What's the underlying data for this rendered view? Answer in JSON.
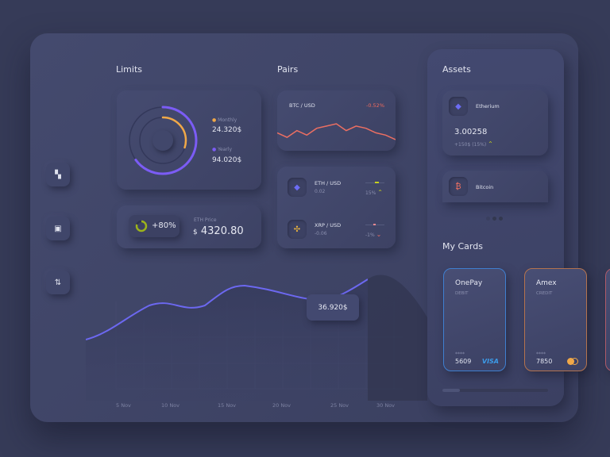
{
  "sidebar": {
    "items": [
      {
        "icon": "dashboard-icon",
        "glyph": "▚"
      },
      {
        "icon": "wallet-icon",
        "glyph": "▣"
      },
      {
        "icon": "exchange-icon",
        "glyph": "⇅"
      }
    ]
  },
  "limits": {
    "title": "Limits",
    "monthly_label": "Monthly",
    "monthly_value": "24.320$",
    "yearly_label": "Yearly",
    "yearly_value": "94.020$",
    "monthly_fraction": 0.3,
    "yearly_fraction": 0.65,
    "colors": {
      "monthly": "#f0a848",
      "yearly": "#7b5cf5"
    }
  },
  "eth_price": {
    "percent": "+80%",
    "label": "ETH Price",
    "currency": "$",
    "value": "4320.80",
    "fraction": 0.8,
    "color": "#9cb31c"
  },
  "pairs": {
    "title": "Pairs",
    "btc": {
      "name": "BTC / USD",
      "change": "-0.52%",
      "trend": [
        5,
        3,
        6,
        4,
        7,
        8,
        9,
        6,
        8,
        7,
        5,
        4,
        2
      ]
    },
    "items": [
      {
        "name": "ETH / USD",
        "value": "0.02",
        "change": "15%",
        "dir": "up",
        "icon": "ethereum-icon",
        "glyph": "◆"
      },
      {
        "name": "XRP / USD",
        "value": "-0.06",
        "change": "-1%",
        "dir": "down",
        "icon": "xrp-icon",
        "glyph": "✣"
      }
    ]
  },
  "main_chart": {
    "x_labels": [
      "5 Nov",
      "10 Nov",
      "15 Nov",
      "20 Nov",
      "25 Nov",
      "30 Nov"
    ],
    "tooltip": "36.920$"
  },
  "assets": {
    "title": "Assets",
    "items": [
      {
        "name": "Etherium",
        "amount": "3.00258",
        "change": "+150$ (15%)",
        "icon": "ethereum-icon",
        "glyph": "◆"
      },
      {
        "name": "Bitcoin",
        "icon": "bitcoin-icon",
        "glyph": "₿"
      }
    ]
  },
  "cards": {
    "title": "My Cards",
    "items": [
      {
        "name": "OnePay",
        "type": "DEBIT",
        "mask": "****",
        "last4": "5609",
        "brand": "VISA"
      },
      {
        "name": "Amex",
        "type": "CREDIT",
        "mask": "****",
        "last4": "7850",
        "brand": "mastercard-icon"
      }
    ]
  }
}
